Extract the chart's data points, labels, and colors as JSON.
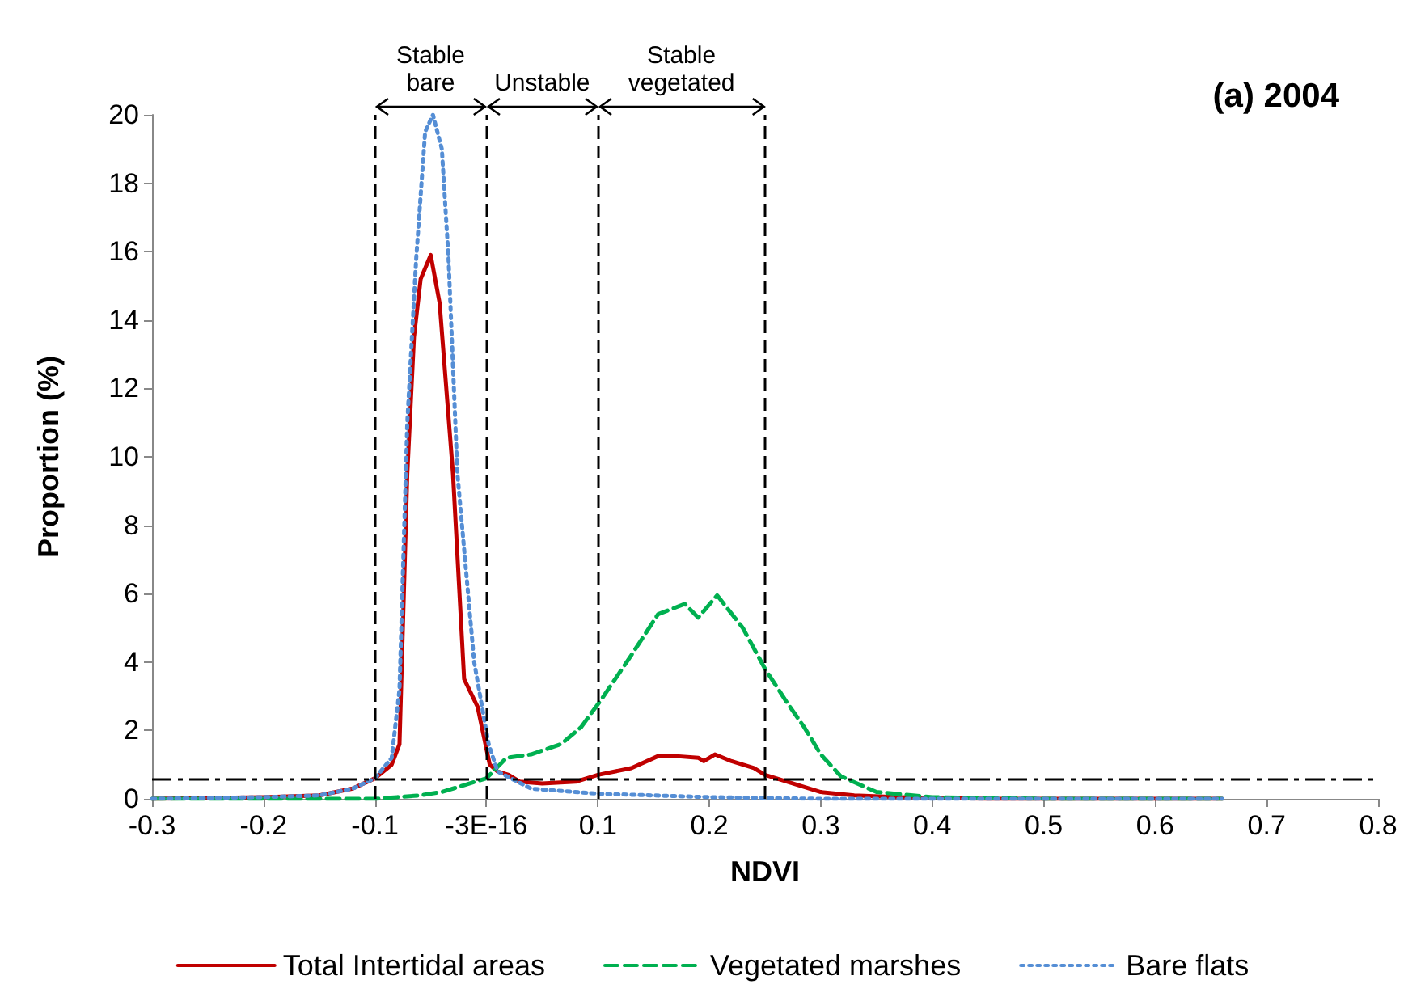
{
  "chart_data": {
    "type": "line",
    "title": "(a) 2004",
    "xlabel": "NDVI",
    "ylabel": "Proportion (%)",
    "xlim": [
      -0.3,
      0.8
    ],
    "xticks": [
      -0.3,
      -0.2,
      -0.1,
      {
        "value": 0,
        "label": "-3E-16"
      },
      0.1,
      0.2,
      0.3,
      0.4,
      0.5,
      0.6,
      0.7,
      0.8
    ],
    "ylim": [
      0,
      20
    ],
    "yticks": [
      0,
      2,
      4,
      6,
      8,
      10,
      12,
      14,
      16,
      18,
      20
    ],
    "grid": false,
    "legend": "bottom",
    "marker": "none",
    "series": [
      {
        "name": "Total Intertidal areas",
        "color": "#c00000",
        "line_style": "solid",
        "x": [
          -0.3,
          -0.2,
          -0.15,
          -0.12,
          -0.1,
          -0.085,
          -0.078,
          -0.071,
          -0.065,
          -0.059,
          -0.05,
          -0.042,
          -0.03,
          -0.02,
          -0.008,
          0.003,
          0.01,
          0.02,
          0.03,
          0.05,
          0.08,
          0.1,
          0.13,
          0.154,
          0.17,
          0.19,
          0.195,
          0.205,
          0.22,
          0.24,
          0.25,
          0.28,
          0.3,
          0.33,
          0.37,
          0.45,
          0.55,
          0.66
        ],
        "values": [
          0,
          0.05,
          0.1,
          0.3,
          0.6,
          1.0,
          1.6,
          9.5,
          13.5,
          15.2,
          15.9,
          14.5,
          9.5,
          3.5,
          2.7,
          1.0,
          0.8,
          0.7,
          0.5,
          0.45,
          0.5,
          0.7,
          0.9,
          1.25,
          1.25,
          1.2,
          1.1,
          1.3,
          1.1,
          0.9,
          0.7,
          0.4,
          0.2,
          0.1,
          0.05,
          0,
          0,
          0
        ]
      },
      {
        "name": "Vegetated marshes",
        "color": "#00b050",
        "line_style": "dashed",
        "x": [
          -0.3,
          -0.1,
          -0.08,
          -0.06,
          -0.04,
          -0.02,
          0,
          0.018,
          0.04,
          0.067,
          0.085,
          0.103,
          0.13,
          0.154,
          0.178,
          0.19,
          0.207,
          0.23,
          0.25,
          0.27,
          0.285,
          0.3,
          0.318,
          0.35,
          0.4,
          0.5,
          0.66
        ],
        "values": [
          0,
          0,
          0.05,
          0.1,
          0.2,
          0.4,
          0.6,
          1.2,
          1.3,
          1.6,
          2.1,
          2.9,
          4.2,
          5.4,
          5.7,
          5.3,
          5.95,
          5.0,
          3.8,
          2.8,
          2.1,
          1.3,
          0.66,
          0.2,
          0.05,
          0,
          0
        ]
      },
      {
        "name": "Bare flats",
        "color": "#558ed5",
        "line_style": "dotted",
        "x": [
          -0.3,
          -0.2,
          -0.15,
          -0.12,
          -0.1,
          -0.085,
          -0.078,
          -0.071,
          -0.063,
          -0.055,
          -0.048,
          -0.04,
          -0.034,
          -0.026,
          -0.011,
          0.002,
          0.01,
          0.04,
          0.1,
          0.2,
          0.3,
          0.45,
          0.66
        ],
        "values": [
          0,
          0.05,
          0.1,
          0.3,
          0.6,
          1.2,
          3.2,
          11,
          15.8,
          19.5,
          20,
          19,
          15.8,
          9.5,
          4.0,
          1.6,
          0.8,
          0.3,
          0.15,
          0.05,
          0,
          0,
          0
        ]
      }
    ],
    "ref_lines": [
      {
        "axis": "y",
        "value": 0.6,
        "color": "#000000",
        "line_style": "dashdot"
      },
      {
        "axis": "x",
        "value": -0.1,
        "color": "#000000",
        "line_style": "dashed"
      },
      {
        "axis": "x",
        "value": 0,
        "color": "#000000",
        "line_style": "dashed"
      },
      {
        "axis": "x",
        "value": 0.1,
        "color": "#000000",
        "line_style": "dashed"
      },
      {
        "axis": "x",
        "value": 0.25,
        "color": "#000000",
        "line_style": "dashed"
      }
    ],
    "annotations": [
      "Stable bare",
      "Unstable",
      "Stable vegetated"
    ]
  }
}
